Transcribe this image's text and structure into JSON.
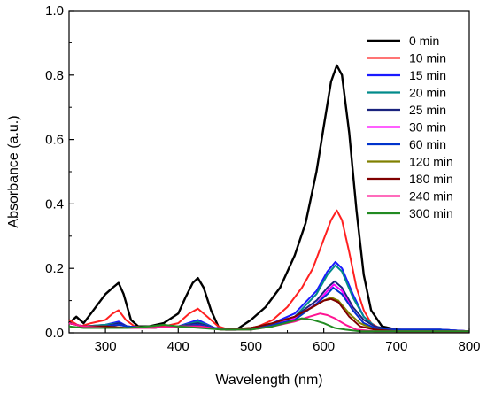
{
  "chart_data": {
    "type": "line",
    "title": "",
    "xlabel": "Wavelength (nm)",
    "ylabel": "Absorbance (a.u.)",
    "xlim": [
      250,
      800
    ],
    "ylim": [
      0,
      1.0
    ],
    "xticks": [
      300,
      400,
      500,
      600,
      700,
      800
    ],
    "yticks": [
      0.0,
      0.2,
      0.4,
      0.6,
      0.8,
      1.0
    ],
    "xtick_labels": [
      "300",
      "400",
      "500",
      "600",
      "700",
      "800"
    ],
    "ytick_labels": [
      "0.0",
      "0.2",
      "0.4",
      "0.6",
      "0.8",
      "1.0"
    ],
    "grid": false,
    "legend_position": "top-right",
    "series": [
      {
        "name": "0 min",
        "color": "#000000",
        "x": [
          250,
          260,
          270,
          280,
          290,
          300,
          310,
          318,
          325,
          335,
          345,
          360,
          380,
          400,
          410,
          420,
          427,
          435,
          445,
          455,
          465,
          480,
          500,
          520,
          540,
          560,
          575,
          590,
          600,
          610,
          618,
          625,
          635,
          645,
          655,
          665,
          680,
          700,
          750,
          800
        ],
        "y": [
          0.03,
          0.05,
          0.03,
          0.06,
          0.09,
          0.12,
          0.14,
          0.155,
          0.12,
          0.04,
          0.02,
          0.02,
          0.03,
          0.06,
          0.11,
          0.155,
          0.17,
          0.14,
          0.07,
          0.02,
          0.01,
          0.01,
          0.04,
          0.08,
          0.14,
          0.24,
          0.34,
          0.5,
          0.64,
          0.78,
          0.83,
          0.8,
          0.62,
          0.38,
          0.18,
          0.07,
          0.02,
          0.01,
          0.005,
          0.005
        ]
      },
      {
        "name": "10 min",
        "color": "#ff2020",
        "x": [
          250,
          265,
          280,
          300,
          310,
          318,
          328,
          340,
          360,
          380,
          400,
          415,
          427,
          440,
          455,
          470,
          490,
          510,
          530,
          550,
          570,
          585,
          600,
          610,
          618,
          625,
          635,
          645,
          655,
          665,
          680,
          700,
          750,
          800
        ],
        "y": [
          0.04,
          0.02,
          0.03,
          0.04,
          0.06,
          0.07,
          0.04,
          0.02,
          0.015,
          0.02,
          0.03,
          0.06,
          0.075,
          0.05,
          0.02,
          0.01,
          0.01,
          0.02,
          0.04,
          0.08,
          0.14,
          0.2,
          0.29,
          0.35,
          0.38,
          0.35,
          0.25,
          0.14,
          0.07,
          0.03,
          0.01,
          0.005,
          0.005,
          0.005
        ]
      },
      {
        "name": "15 min",
        "color": "#1a1aff",
        "x": [
          250,
          270,
          300,
          318,
          330,
          360,
          400,
          427,
          450,
          480,
          520,
          560,
          590,
          605,
          616,
          625,
          640,
          655,
          670,
          690,
          720,
          760,
          800
        ],
        "y": [
          0.03,
          0.02,
          0.025,
          0.035,
          0.02,
          0.015,
          0.02,
          0.04,
          0.015,
          0.01,
          0.02,
          0.06,
          0.13,
          0.19,
          0.22,
          0.2,
          0.12,
          0.05,
          0.02,
          0.01,
          0.01,
          0.01,
          0.005
        ]
      },
      {
        "name": "20 min",
        "color": "#008b8b",
        "x": [
          250,
          270,
          300,
          318,
          330,
          360,
          400,
          427,
          450,
          480,
          520,
          560,
          590,
          605,
          616,
          625,
          640,
          655,
          670,
          690,
          720,
          760,
          800
        ],
        "y": [
          0.03,
          0.02,
          0.025,
          0.03,
          0.02,
          0.015,
          0.02,
          0.035,
          0.015,
          0.01,
          0.02,
          0.05,
          0.12,
          0.18,
          0.21,
          0.19,
          0.11,
          0.05,
          0.02,
          0.01,
          0.01,
          0.01,
          0.005
        ]
      },
      {
        "name": "25 min",
        "color": "#1a237e",
        "x": [
          250,
          270,
          300,
          318,
          330,
          360,
          400,
          427,
          450,
          480,
          520,
          560,
          590,
          605,
          615,
          625,
          640,
          655,
          670,
          690,
          720,
          760,
          800
        ],
        "y": [
          0.03,
          0.02,
          0.02,
          0.03,
          0.02,
          0.015,
          0.02,
          0.03,
          0.015,
          0.01,
          0.02,
          0.05,
          0.1,
          0.14,
          0.16,
          0.14,
          0.08,
          0.04,
          0.02,
          0.01,
          0.01,
          0.01,
          0.005
        ]
      },
      {
        "name": "30 min",
        "color": "#ff00ff",
        "x": [
          250,
          270,
          300,
          318,
          330,
          360,
          400,
          427,
          450,
          480,
          520,
          560,
          590,
          605,
          614,
          625,
          640,
          655,
          670,
          690,
          720,
          760,
          800
        ],
        "y": [
          0.03,
          0.02,
          0.02,
          0.025,
          0.02,
          0.015,
          0.02,
          0.025,
          0.015,
          0.01,
          0.02,
          0.045,
          0.09,
          0.13,
          0.15,
          0.13,
          0.07,
          0.03,
          0.015,
          0.01,
          0.01,
          0.01,
          0.005
        ]
      },
      {
        "name": "60 min",
        "color": "#0033cc",
        "x": [
          250,
          270,
          300,
          318,
          330,
          360,
          400,
          427,
          450,
          480,
          520,
          560,
          590,
          605,
          613,
          625,
          640,
          655,
          670,
          690,
          720,
          760,
          800
        ],
        "y": [
          0.03,
          0.02,
          0.02,
          0.025,
          0.02,
          0.015,
          0.02,
          0.025,
          0.015,
          0.01,
          0.02,
          0.04,
          0.09,
          0.12,
          0.14,
          0.12,
          0.07,
          0.03,
          0.015,
          0.01,
          0.01,
          0.01,
          0.005
        ]
      },
      {
        "name": "120 min",
        "color": "#808000",
        "x": [
          250,
          270,
          300,
          330,
          360,
          400,
          430,
          460,
          500,
          530,
          560,
          585,
          600,
          610,
          620,
          635,
          650,
          670,
          700,
          750,
          800
        ],
        "y": [
          0.03,
          0.02,
          0.02,
          0.015,
          0.015,
          0.02,
          0.02,
          0.01,
          0.015,
          0.03,
          0.05,
          0.08,
          0.1,
          0.11,
          0.1,
          0.06,
          0.03,
          0.01,
          0.005,
          0.005,
          0.005
        ]
      },
      {
        "name": "180 min",
        "color": "#800000",
        "x": [
          250,
          270,
          300,
          330,
          360,
          400,
          430,
          460,
          500,
          530,
          560,
          585,
          600,
          610,
          620,
          635,
          650,
          670,
          700,
          750,
          800
        ],
        "y": [
          0.03,
          0.02,
          0.02,
          0.015,
          0.015,
          0.02,
          0.02,
          0.01,
          0.015,
          0.03,
          0.05,
          0.08,
          0.1,
          0.105,
          0.095,
          0.05,
          0.02,
          0.01,
          0.005,
          0.005,
          0.005
        ]
      },
      {
        "name": "240 min",
        "color": "#ff1493",
        "x": [
          250,
          270,
          300,
          330,
          360,
          400,
          430,
          460,
          500,
          530,
          560,
          580,
          595,
          605,
          615,
          630,
          645,
          670,
          700,
          750,
          800
        ],
        "y": [
          0.03,
          0.02,
          0.015,
          0.015,
          0.015,
          0.02,
          0.02,
          0.01,
          0.01,
          0.02,
          0.035,
          0.05,
          0.06,
          0.055,
          0.045,
          0.025,
          0.01,
          0.005,
          0.005,
          0.005,
          0.005
        ]
      },
      {
        "name": "300 min",
        "color": "#228b22",
        "x": [
          250,
          270,
          300,
          330,
          360,
          380,
          400,
          430,
          460,
          500,
          530,
          555,
          570,
          585,
          600,
          615,
          630,
          650,
          680,
          720,
          800
        ],
        "y": [
          0.02,
          0.015,
          0.015,
          0.015,
          0.02,
          0.025,
          0.02,
          0.015,
          0.01,
          0.01,
          0.02,
          0.035,
          0.045,
          0.04,
          0.03,
          0.015,
          0.01,
          0.005,
          0.005,
          0.005,
          0.005
        ]
      }
    ]
  }
}
